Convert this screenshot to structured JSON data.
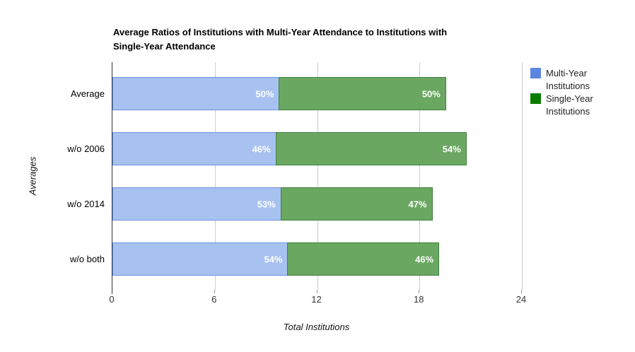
{
  "chart_data": {
    "type": "bar",
    "orientation": "horizontal",
    "stacked": true,
    "title": "Average Ratios of Institutions with Multi-Year Attendance to Institutions with Single-Year Attendance",
    "title_lines": [
      "Average Ratios of Institutions with Multi-Year Attendance to Institutions with",
      "Single-Year Attendance"
    ],
    "categories": [
      "Average",
      "w/o 2006",
      "w/o 2014",
      "w/o both"
    ],
    "series": [
      {
        "name": "Multi-Year Institutions",
        "values": [
          9.8,
          9.6,
          9.9,
          10.3
        ],
        "labels": [
          "50%",
          "46%",
          "53%",
          "54%"
        ],
        "legend_color": "#5b85e1",
        "fill_color": "#a7c2f0",
        "border_color": "#6b92e3"
      },
      {
        "name": "Single-Year Institutions",
        "values": [
          9.8,
          11.2,
          8.9,
          8.9
        ],
        "labels": [
          "50%",
          "54%",
          "47%",
          "46%"
        ],
        "legend_color": "#0a7d00",
        "fill_color": "#6aa761",
        "border_color": "#41803e"
      }
    ],
    "xlabel": "Total Institutions",
    "ylabel": "Averages",
    "xlim": [
      0,
      24
    ],
    "xticks": [
      0,
      6,
      12,
      18,
      24
    ],
    "grid": "vertical-on",
    "legend_position": "right",
    "value_label_color": "#ffffff",
    "background_color": "#ffffff"
  }
}
